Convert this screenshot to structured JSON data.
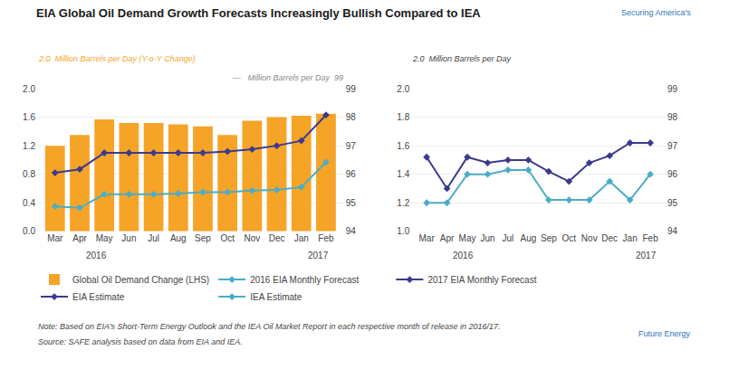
{
  "chart_data": [
    {
      "type": "bar",
      "title": "EIA Global Oil Demand Growth Forecasts Increasingly Bullish Compared to IEA",
      "categories": [
        "Mar",
        "Apr",
        "May",
        "Jun",
        "Jul",
        "Aug",
        "Sep",
        "Oct",
        "Nov",
        "Dec",
        "Jan",
        "Feb"
      ],
      "series": [
        {
          "name": "Global Oil Demand Change (LHS)",
          "type": "bar",
          "color": "#F5A427",
          "values": [
            1.2,
            1.35,
            1.57,
            1.52,
            1.52,
            1.5,
            1.47,
            1.35,
            1.55,
            1.6,
            1.62,
            1.65
          ]
        },
        {
          "name": "2016 EIA Monthly Forecast",
          "type": "line",
          "color": "#4BACC6",
          "marker": "diamond",
          "values": [
            0.35,
            0.33,
            0.52,
            0.52,
            0.52,
            0.53,
            0.55,
            0.55,
            0.57,
            0.58,
            0.62,
            0.97
          ]
        },
        {
          "name": "2017 EIA Monthly Forecast",
          "type": "line",
          "color": "#3B3A8F",
          "marker": "diamond",
          "values": [
            0.82,
            0.87,
            1.1,
            1.1,
            1.1,
            1.1,
            1.1,
            1.12,
            1.15,
            1.2,
            1.27,
            1.63
          ]
        }
      ],
      "ylim": [
        0.0,
        2.0
      ],
      "yticks": [
        {
          "value": 0.0,
          "label": "0.0"
        },
        0.4,
        0.8,
        1.2,
        1.6,
        {
          "value": 2.0,
          "label": "2.0"
        }
      ],
      "y2lim": [
        94.0,
        99.0
      ],
      "y2ticks": [
        94,
        95,
        96,
        97,
        98,
        99
      ],
      "ylabel": "2.0  Million Barrels per Day (Y-o-Y Change)",
      "y2label": "—   Million Barrels per Day  99",
      "grid": true,
      "annotations": [
        "2016",
        "2017",
        "Note: Based on EIA’s Short-Term Energy Outlook and the IEA Oil Market Report in each respective month of release in 2016/17.",
        "Source: SAFE analysis based on data from EIA and IEA.",
        "Securing America's",
        "Future Energy"
      ]
    },
    {
      "type": "line",
      "categories": [
        "Mar",
        "Apr",
        "May",
        "Jun",
        "Jul",
        "Aug",
        "Sep",
        "Oct",
        "Nov",
        "Dec",
        "Jan",
        "Feb"
      ],
      "series": [
        {
          "name": "EIA Estimate",
          "type": "line",
          "color": "#3B3A8F",
          "marker": "diamond",
          "values": [
            1.52,
            1.3,
            1.52,
            1.48,
            1.5,
            1.5,
            1.42,
            1.35,
            1.48,
            1.53,
            1.62,
            1.62
          ]
        },
        {
          "name": "IEA Estimate",
          "type": "line",
          "color": "#4BACC6",
          "marker": "diamond",
          "values": [
            1.2,
            1.2,
            1.4,
            1.4,
            1.43,
            1.43,
            1.22,
            1.22,
            1.22,
            1.35,
            1.22,
            1.4
          ]
        }
      ],
      "ylim": [
        1.0,
        2.0
      ],
      "yticks": [
        {
          "value": 1.0,
          "label": "1.0"
        },
        1.2,
        1.4,
        1.6,
        1.8,
        {
          "value": 2.0,
          "label": "2.0"
        }
      ],
      "y2lim": [
        94.0,
        99.0
      ],
      "y2ticks": [
        94,
        95,
        96,
        97,
        98,
        99
      ],
      "ylabel": "2.0  Million Barrels per Day",
      "grid": true,
      "annotations": [
        "2016",
        "2017"
      ]
    }
  ]
}
